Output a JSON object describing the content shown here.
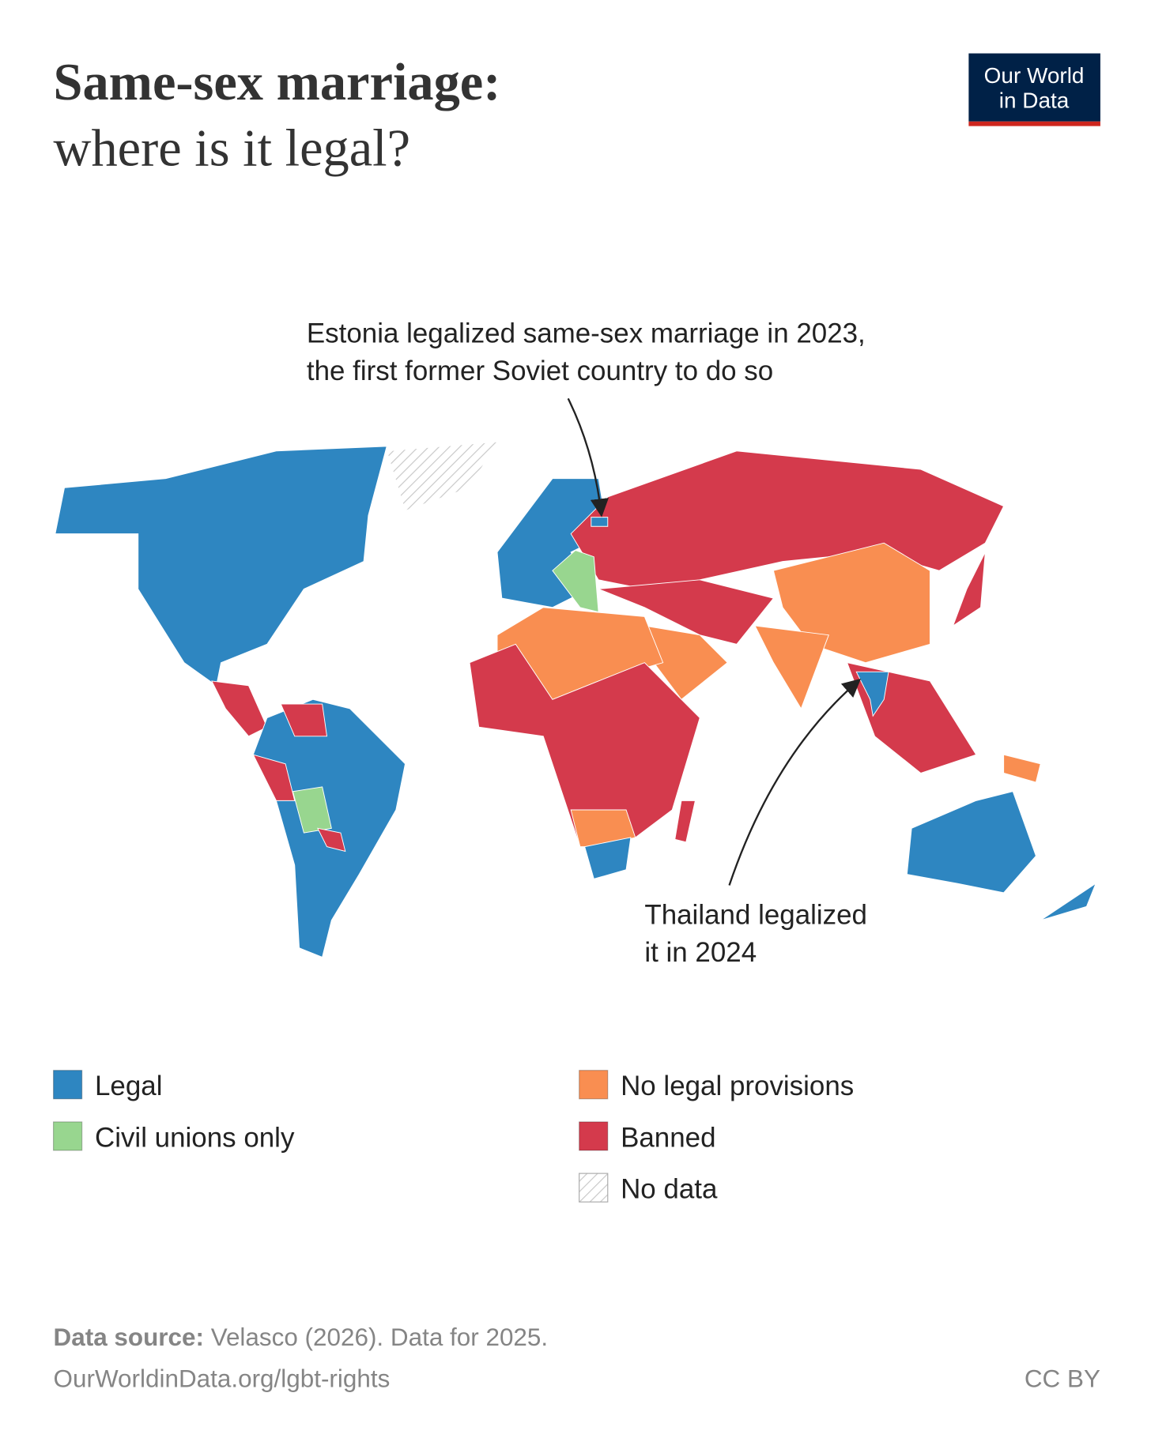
{
  "header": {
    "title_line1": "Same-sex marriage:",
    "title_line2": "where is it legal?"
  },
  "logo": {
    "line1": "Our World",
    "line2": "in Data"
  },
  "annotations": [
    {
      "lines": [
        "Estonia legalized same-sex marriage in 2023,",
        "the first former Soviet country to do so"
      ]
    },
    {
      "lines": [
        "Thailand legalized",
        "it in 2024"
      ]
    }
  ],
  "legend": [
    {
      "label": "Legal",
      "color": "#2e86c1"
    },
    {
      "label": "Civil unions only",
      "color": "#98d68f"
    },
    {
      "label": "No legal provisions",
      "color": "#f98e51"
    },
    {
      "label": "Banned",
      "color": "#d43a4c"
    },
    {
      "label": "No data",
      "color": "#c8c8c8"
    }
  ],
  "footer": {
    "source_label": "Data source:",
    "source_text": "Velasco (2026). Data for 2025.",
    "url": "OurWorldinData.org/lgbt-rights",
    "license": "CC BY"
  }
}
